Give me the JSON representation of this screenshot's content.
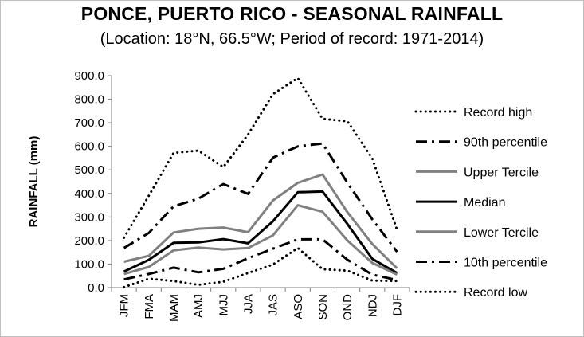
{
  "chart_data": {
    "type": "line",
    "title": "PONCE, PUERTO RICO - SEASONAL RAINFALL",
    "subtitle": "(Location: 18°N, 66.5°W; Period of record: 1971-2014)",
    "xlabel": "",
    "ylabel": "RAINFALL (mm)",
    "ylim": [
      0,
      900
    ],
    "ytick_step": 100,
    "ytick_labels": [
      "0.0",
      "100.0",
      "200.0",
      "300.0",
      "400.0",
      "500.0",
      "600.0",
      "700.0",
      "800.0",
      "900.0"
    ],
    "categories": [
      "JFM",
      "FMA",
      "MAM",
      "AMJ",
      "MJJ",
      "JJA",
      "JAS",
      "ASO",
      "SON",
      "OND",
      "NDJ",
      "DJF"
    ],
    "legend_position": "right",
    "series": [
      {
        "name": "Record high",
        "style": "dotted",
        "color": "#000000",
        "values": [
          212,
          390,
          572,
          582,
          512,
          650,
          822,
          890,
          717,
          706,
          548,
          245
        ]
      },
      {
        "name": "90th percentile",
        "style": "dashdot",
        "color": "#000000",
        "values": [
          168,
          232,
          345,
          378,
          440,
          398,
          552,
          600,
          612,
          445,
          290,
          152
        ]
      },
      {
        "name": "Upper Tercile",
        "style": "solid",
        "color": "#808080",
        "values": [
          110,
          135,
          234,
          250,
          255,
          235,
          370,
          445,
          480,
          320,
          185,
          82
        ]
      },
      {
        "name": "Median",
        "style": "solid",
        "color": "#000000",
        "values": [
          68,
          118,
          190,
          192,
          206,
          188,
          282,
          405,
          408,
          270,
          122,
          62
        ]
      },
      {
        "name": "Lower Tercile",
        "style": "solid",
        "color": "#808080",
        "values": [
          58,
          88,
          158,
          170,
          162,
          168,
          222,
          350,
          322,
          200,
          105,
          55
        ]
      },
      {
        "name": "10th percentile",
        "style": "dashdot",
        "color": "#000000",
        "values": [
          35,
          58,
          85,
          65,
          80,
          125,
          165,
          205,
          205,
          118,
          55,
          32
        ]
      },
      {
        "name": "Record low",
        "style": "dotted",
        "color": "#000000",
        "values": [
          2,
          38,
          28,
          12,
          25,
          62,
          98,
          168,
          78,
          72,
          30,
          28
        ]
      }
    ]
  }
}
